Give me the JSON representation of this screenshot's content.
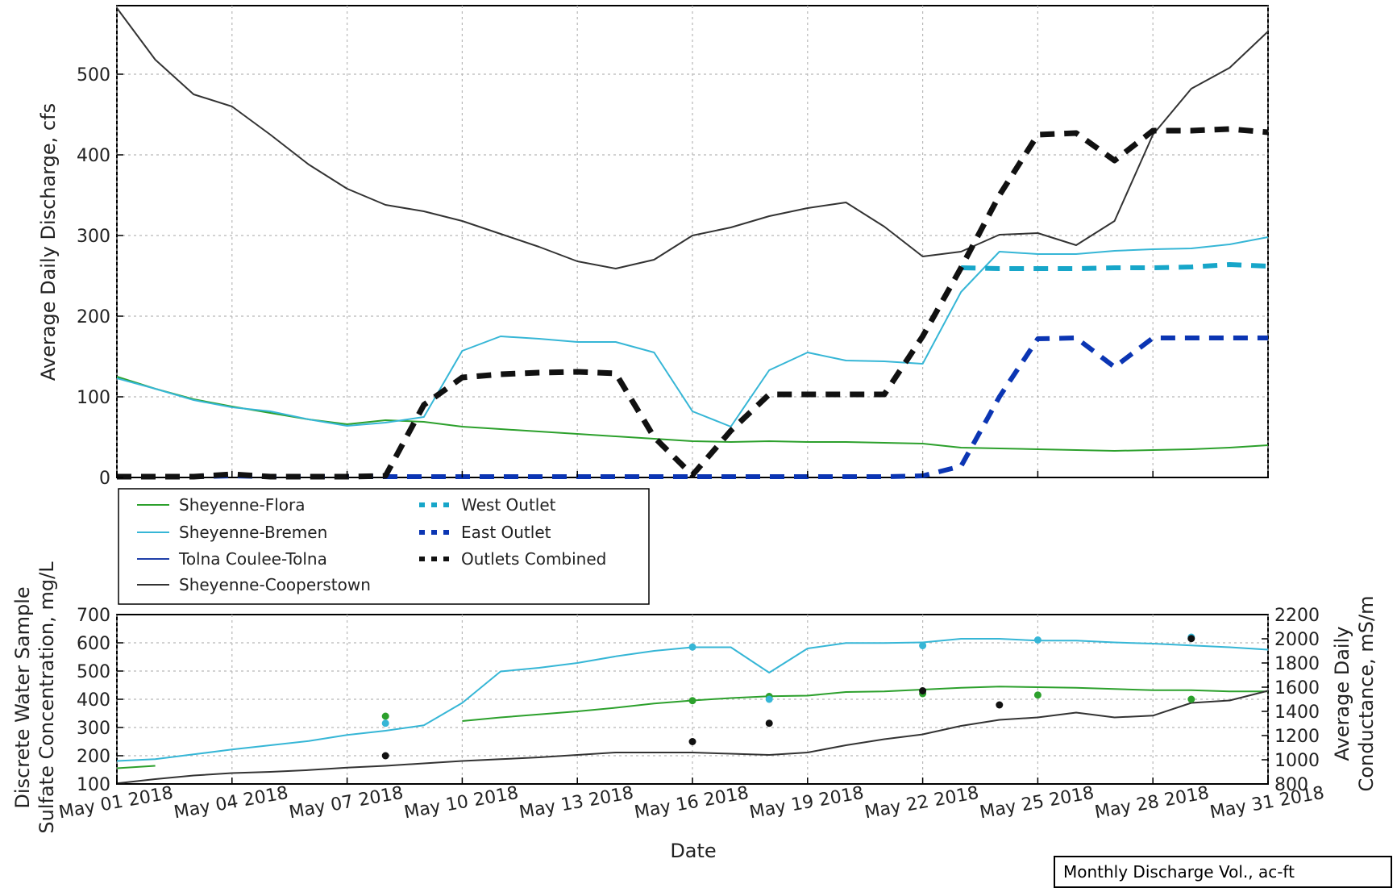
{
  "chart_data": [
    {
      "type": "line",
      "panel": "discharge",
      "ylabel": "Average Daily Discharge, cfs",
      "ylim": [
        0,
        585
      ],
      "yticks": [
        "0",
        "100",
        "200",
        "300",
        "400",
        "500"
      ],
      "ytick_values": [
        0,
        100,
        200,
        300,
        400,
        500
      ],
      "xlim": [
        1,
        31
      ],
      "grid": true,
      "legend": {
        "placement": "below-left",
        "entries": [
          {
            "label": "Sheyenne-Flora",
            "color": "#2ca02c",
            "style": "solid"
          },
          {
            "label": "Sheyenne-Bremen",
            "color": "#36b6d6",
            "style": "solid"
          },
          {
            "label": "Tolna Coulee-Tolna",
            "color": "#1f3fa8",
            "style": "solid"
          },
          {
            "label": "Sheyenne-Cooperstown",
            "color": "#333333",
            "style": "solid"
          },
          {
            "label": "West Outlet",
            "color": "#17a6c9",
            "style": "dashed"
          },
          {
            "label": "East Outlet",
            "color": "#0b35b3",
            "style": "dashed"
          },
          {
            "label": "Outlets Combined",
            "color": "#111111",
            "style": "dashed"
          }
        ]
      },
      "series": [
        {
          "name": "Sheyenne-Flora",
          "color": "#2ca02c",
          "width": 2,
          "dash": "",
          "x": [
            1,
            2,
            3,
            4,
            5,
            6,
            7,
            8,
            9,
            10,
            11,
            12,
            13,
            14,
            15,
            16,
            17,
            18,
            19,
            20,
            21,
            22,
            23,
            24,
            25,
            26,
            27,
            28,
            29,
            30,
            31
          ],
          "values": [
            125,
            110,
            97,
            88,
            80,
            72,
            66,
            71,
            69,
            63,
            60,
            57,
            54,
            51,
            48,
            45,
            44,
            45,
            44,
            44,
            43,
            42,
            37,
            36,
            35,
            34,
            33,
            34,
            35,
            37,
            40
          ]
        },
        {
          "name": "Sheyenne-Bremen",
          "color": "#36b6d6",
          "width": 2,
          "dash": "",
          "x": [
            1,
            2,
            3,
            4,
            5,
            6,
            7,
            8,
            9,
            10,
            11,
            12,
            13,
            14,
            15,
            16,
            17,
            18,
            19,
            20,
            21,
            22,
            23,
            24,
            25,
            26,
            27,
            28,
            29,
            30,
            31
          ],
          "values": [
            123,
            110,
            96,
            87,
            82,
            72,
            64,
            68,
            75,
            157,
            175,
            172,
            168,
            168,
            155,
            82,
            63,
            133,
            155,
            145,
            144,
            141,
            230,
            280,
            277,
            277,
            281,
            283,
            284,
            289,
            298
          ]
        },
        {
          "name": "Tolna Coulee-Tolna",
          "color": "#1f3fa8",
          "width": 2,
          "dash": "",
          "x": [],
          "values": []
        },
        {
          "name": "Sheyenne-Cooperstown",
          "color": "#333333",
          "width": 2,
          "dash": "",
          "x": [
            1,
            2,
            3,
            4,
            5,
            6,
            7,
            8,
            9,
            10,
            11,
            12,
            13,
            14,
            15,
            16,
            17,
            18,
            19,
            20,
            21,
            22,
            23,
            24,
            25,
            26,
            27,
            28,
            29,
            30,
            31
          ],
          "values": [
            582,
            518,
            475,
            460,
            425,
            388,
            358,
            338,
            330,
            318,
            302,
            286,
            268,
            259,
            270,
            300,
            310,
            324,
            334,
            341,
            311,
            274,
            280,
            301,
            303,
            288,
            318,
            425,
            482,
            508,
            553
          ]
        },
        {
          "name": "West Outlet",
          "color": "#17a6c9",
          "width": 6,
          "dash": "18,12",
          "x": [
            23,
            24,
            25,
            26,
            27,
            28,
            29,
            30,
            31
          ],
          "values": [
            260,
            259,
            259,
            259,
            260,
            260,
            261,
            264,
            262
          ]
        },
        {
          "name": "East Outlet",
          "color": "#0b35b3",
          "width": 6,
          "dash": "18,12",
          "x": [
            1,
            2,
            3,
            4,
            5,
            6,
            7,
            8,
            9,
            10,
            11,
            12,
            13,
            14,
            15,
            16,
            17,
            18,
            19,
            20,
            21,
            22,
            23,
            24,
            25,
            26,
            27,
            28,
            29,
            30,
            31
          ],
          "values": [
            1,
            1,
            1,
            2,
            1,
            1,
            1,
            1,
            1,
            1,
            1,
            1,
            1,
            1,
            1,
            1,
            1,
            1,
            1,
            1,
            1,
            2,
            14,
            100,
            172,
            173,
            137,
            173,
            173,
            173,
            173
          ]
        },
        {
          "name": "Outlets Combined",
          "color": "#111111",
          "width": 7,
          "dash": "18,12",
          "x": [
            1,
            2,
            3,
            4,
            5,
            6,
            7,
            8,
            9,
            10,
            11,
            12,
            13,
            14,
            15,
            16,
            17,
            18,
            19,
            20,
            21,
            22,
            23,
            24,
            25,
            26,
            27,
            28,
            29,
            30,
            31
          ],
          "values": [
            1,
            1,
            1,
            4,
            1,
            1,
            1,
            2,
            90,
            124,
            128,
            130,
            131,
            129,
            50,
            3,
            58,
            103,
            103,
            103,
            103,
            175,
            260,
            350,
            425,
            427,
            393,
            430,
            430,
            432,
            428
          ]
        }
      ]
    },
    {
      "type": "line",
      "panel": "sulfate-conductance",
      "xlabel": "Date",
      "ylabel_left_lines": [
        "Discrete Water Sample",
        "Sulfate Concentration, mg/L"
      ],
      "ylabel_right_lines": [
        "Average Daily",
        "Conductance, mS/m"
      ],
      "ylim_left": [
        100,
        700
      ],
      "ylim_right": [
        800,
        2200
      ],
      "yticks_left": [
        "100",
        "200",
        "300",
        "400",
        "500",
        "600",
        "700"
      ],
      "ytick_values_left": [
        100,
        200,
        300,
        400,
        500,
        600,
        700
      ],
      "yticks_right": [
        "800",
        "1000",
        "1200",
        "1400",
        "1600",
        "1800",
        "2000",
        "2200"
      ],
      "ytick_values_right": [
        800,
        1000,
        1200,
        1400,
        1600,
        1800,
        2000,
        2200
      ],
      "xlim": [
        1,
        31
      ],
      "xticks": [
        "May 01 2018",
        "May 04 2018",
        "May 07 2018",
        "May 10 2018",
        "May 13 2018",
        "May 16 2018",
        "May 19 2018",
        "May 22 2018",
        "May 25 2018",
        "May 28 2018",
        "May 31 2018"
      ],
      "xtick_values": [
        1,
        4,
        7,
        10,
        13,
        16,
        19,
        22,
        25,
        28,
        31
      ],
      "grid": true,
      "conductance_series": [
        {
          "name": "Sheyenne-Flora",
          "color": "#2ca02c",
          "segments": [
            {
              "x": [
                1,
                2
              ],
              "values": [
                930,
                950
              ]
            },
            {
              "x": [
                10,
                11,
                12,
                13,
                14,
                15,
                16,
                17,
                18,
                19,
                20,
                21,
                22,
                23,
                24,
                25,
                26,
                27,
                28,
                29,
                30,
                31
              ],
              "values": [
                1320,
                1350,
                1375,
                1400,
                1430,
                1465,
                1490,
                1510,
                1525,
                1530,
                1560,
                1565,
                1580,
                1595,
                1605,
                1600,
                1595,
                1585,
                1575,
                1575,
                1565,
                1565
              ]
            }
          ]
        },
        {
          "name": "Sheyenne-Bremen",
          "color": "#36b6d6",
          "segments": [
            {
              "x": [
                1,
                2,
                3,
                4,
                5,
                6,
                7,
                8,
                9,
                10,
                11,
                12,
                13,
                14,
                15,
                16,
                17,
                18,
                19,
                20,
                21,
                22,
                23,
                24,
                25,
                26,
                27,
                28,
                29,
                30,
                31
              ],
              "values": [
                990,
                1005,
                1045,
                1085,
                1120,
                1155,
                1205,
                1240,
                1285,
                1470,
                1730,
                1760,
                1800,
                1855,
                1900,
                1930,
                1930,
                1720,
                1920,
                1965,
                1965,
                1970,
                2000,
                2000,
                1985,
                1985,
                1970,
                1960,
                1945,
                1930,
                1910
              ]
            }
          ]
        },
        {
          "name": "Sheyenne-Cooperstown",
          "color": "#333333",
          "segments": [
            {
              "x": [
                1,
                2,
                3,
                4,
                5,
                6,
                7,
                8,
                9,
                10,
                11,
                12,
                13,
                14,
                15,
                16,
                17,
                18,
                19,
                20,
                21,
                22,
                23,
                24,
                25,
                26,
                27,
                28,
                29,
                30,
                31
              ],
              "values": [
                805,
                840,
                870,
                890,
                900,
                915,
                935,
                950,
                970,
                990,
                1005,
                1020,
                1040,
                1060,
                1060,
                1060,
                1050,
                1040,
                1060,
                1120,
                1170,
                1210,
                1280,
                1330,
                1350,
                1390,
                1350,
                1365,
                1470,
                1490,
                1570
              ]
            }
          ]
        }
      ],
      "sulfate_samples": [
        {
          "site": "Sheyenne-Flora",
          "color": "#2ca02c",
          "x": [
            8,
            16,
            18,
            22,
            25,
            29
          ],
          "values": [
            340,
            395,
            410,
            420,
            415,
            400
          ]
        },
        {
          "site": "Sheyenne-Bremen",
          "color": "#36b6d6",
          "x": [
            8,
            16,
            18,
            22,
            25,
            29
          ],
          "values": [
            315,
            585,
            400,
            590,
            610,
            620
          ]
        },
        {
          "site": "Sheyenne-Cooperstown",
          "color": "#111111",
          "x": [
            8,
            16,
            18,
            22,
            24,
            29
          ],
          "values": [
            200,
            250,
            315,
            430,
            380,
            615
          ]
        }
      ]
    }
  ],
  "corner_note": "Monthly Discharge Vol., ac-ft"
}
